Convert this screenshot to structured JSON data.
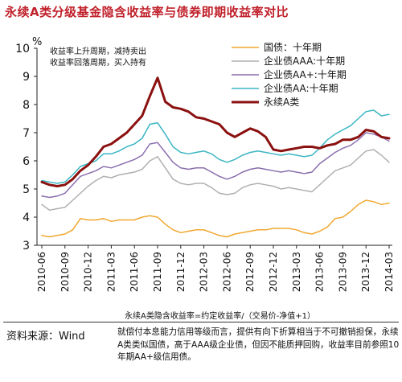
{
  "figure": {
    "title": "永续A类分级基金隐含收益率与债券即期收益率对比",
    "y_unit": "%",
    "annotation": [
      "收益率上升周期，减持卖出",
      "收益率回落周期，买入持有"
    ],
    "formula": "永续A类隐含收益率=约定收益率/（交易价-净值+1）",
    "source": "资料来源：Wind",
    "note": "就偿付本息能力信用等级而言，提供有向下折算相当于不可撤销担保，永续A类类似国债，高于AAA级企业债，但因不能质押回购，收益率目前参照10年期AA+级信用债。"
  },
  "chart_data": {
    "type": "line",
    "title": "永续A类分级基金隐含收益率与债券即期收益率对比",
    "ylabel": "%",
    "xlabel": "",
    "ylim": [
      3,
      10
    ],
    "yticks": [
      3,
      4,
      5,
      6,
      7,
      8,
      9,
      10
    ],
    "x_range": [
      "2010-06",
      "2014-03"
    ],
    "x_ticks": [
      "2010-06",
      "2010-09",
      "2010-12",
      "2011-03",
      "2011-06",
      "2011-09",
      "2011-12",
      "2012-03",
      "2012-06",
      "2012-09",
      "2012-12",
      "2013-03",
      "2013-06",
      "2013-09",
      "2013-12",
      "2014-03"
    ],
    "legend_position": "top-right",
    "grid": false,
    "series": [
      {
        "name": "国债：十年期",
        "color": "#f0a830",
        "width": 1.5,
        "points": [
          [
            "2010-06",
            3.35
          ],
          [
            "2010-07",
            3.3
          ],
          [
            "2010-08",
            3.35
          ],
          [
            "2010-09",
            3.4
          ],
          [
            "2010-10",
            3.55
          ],
          [
            "2010-11",
            3.95
          ],
          [
            "2010-12",
            3.9
          ],
          [
            "2011-01",
            3.9
          ],
          [
            "2011-02",
            3.95
          ],
          [
            "2011-03",
            3.85
          ],
          [
            "2011-04",
            3.9
          ],
          [
            "2011-05",
            3.9
          ],
          [
            "2011-06",
            3.9
          ],
          [
            "2011-07",
            4.0
          ],
          [
            "2011-08",
            4.05
          ],
          [
            "2011-09",
            4.0
          ],
          [
            "2011-10",
            3.75
          ],
          [
            "2011-11",
            3.55
          ],
          [
            "2011-12",
            3.45
          ],
          [
            "2012-01",
            3.5
          ],
          [
            "2012-02",
            3.55
          ],
          [
            "2012-03",
            3.55
          ],
          [
            "2012-04",
            3.45
          ],
          [
            "2012-05",
            3.35
          ],
          [
            "2012-06",
            3.3
          ],
          [
            "2012-07",
            3.4
          ],
          [
            "2012-08",
            3.45
          ],
          [
            "2012-09",
            3.5
          ],
          [
            "2012-10",
            3.55
          ],
          [
            "2012-11",
            3.55
          ],
          [
            "2012-12",
            3.6
          ],
          [
            "2013-01",
            3.6
          ],
          [
            "2013-02",
            3.6
          ],
          [
            "2013-03",
            3.55
          ],
          [
            "2013-04",
            3.45
          ],
          [
            "2013-05",
            3.4
          ],
          [
            "2013-06",
            3.5
          ],
          [
            "2013-07",
            3.65
          ],
          [
            "2013-08",
            3.95
          ],
          [
            "2013-09",
            4.0
          ],
          [
            "2013-10",
            4.2
          ],
          [
            "2013-11",
            4.45
          ],
          [
            "2013-12",
            4.6
          ],
          [
            "2014-01",
            4.55
          ],
          [
            "2014-02",
            4.45
          ],
          [
            "2014-03",
            4.5
          ]
        ]
      },
      {
        "name": "企业债AAA:十年期",
        "color": "#b0b0b0",
        "width": 1.5,
        "points": [
          [
            "2010-06",
            4.45
          ],
          [
            "2010-07",
            4.25
          ],
          [
            "2010-08",
            4.3
          ],
          [
            "2010-09",
            4.35
          ],
          [
            "2010-10",
            4.6
          ],
          [
            "2010-11",
            4.85
          ],
          [
            "2010-12",
            5.1
          ],
          [
            "2011-01",
            5.3
          ],
          [
            "2011-02",
            5.45
          ],
          [
            "2011-03",
            5.4
          ],
          [
            "2011-04",
            5.5
          ],
          [
            "2011-05",
            5.55
          ],
          [
            "2011-06",
            5.6
          ],
          [
            "2011-07",
            5.7
          ],
          [
            "2011-08",
            6.0
          ],
          [
            "2011-09",
            6.15
          ],
          [
            "2011-10",
            5.75
          ],
          [
            "2011-11",
            5.35
          ],
          [
            "2011-12",
            5.2
          ],
          [
            "2012-01",
            5.15
          ],
          [
            "2012-02",
            5.2
          ],
          [
            "2012-03",
            5.2
          ],
          [
            "2012-04",
            5.05
          ],
          [
            "2012-05",
            4.85
          ],
          [
            "2012-06",
            4.8
          ],
          [
            "2012-07",
            4.85
          ],
          [
            "2012-08",
            5.05
          ],
          [
            "2012-09",
            5.15
          ],
          [
            "2012-10",
            5.2
          ],
          [
            "2012-11",
            5.15
          ],
          [
            "2012-12",
            5.1
          ],
          [
            "2013-01",
            5.0
          ],
          [
            "2013-02",
            5.05
          ],
          [
            "2013-03",
            5.0
          ],
          [
            "2013-04",
            4.95
          ],
          [
            "2013-05",
            4.9
          ],
          [
            "2013-06",
            5.15
          ],
          [
            "2013-07",
            5.4
          ],
          [
            "2013-08",
            5.65
          ],
          [
            "2013-09",
            5.75
          ],
          [
            "2013-10",
            5.85
          ],
          [
            "2013-11",
            6.1
          ],
          [
            "2013-12",
            6.35
          ],
          [
            "2014-01",
            6.4
          ],
          [
            "2014-02",
            6.2
          ],
          [
            "2014-03",
            5.95
          ]
        ]
      },
      {
        "name": "企业债AA+:十年期",
        "color": "#8a6fae",
        "width": 1.5,
        "points": [
          [
            "2010-06",
            4.75
          ],
          [
            "2010-07",
            4.7
          ],
          [
            "2010-08",
            4.75
          ],
          [
            "2010-09",
            4.85
          ],
          [
            "2010-10",
            5.15
          ],
          [
            "2010-11",
            5.45
          ],
          [
            "2010-12",
            5.55
          ],
          [
            "2011-01",
            5.65
          ],
          [
            "2011-02",
            5.8
          ],
          [
            "2011-03",
            5.75
          ],
          [
            "2011-04",
            5.85
          ],
          [
            "2011-05",
            5.95
          ],
          [
            "2011-06",
            6.05
          ],
          [
            "2011-07",
            6.2
          ],
          [
            "2011-08",
            6.6
          ],
          [
            "2011-09",
            6.65
          ],
          [
            "2011-10",
            6.3
          ],
          [
            "2011-11",
            5.95
          ],
          [
            "2011-12",
            5.75
          ],
          [
            "2012-01",
            5.7
          ],
          [
            "2012-02",
            5.75
          ],
          [
            "2012-03",
            5.75
          ],
          [
            "2012-04",
            5.6
          ],
          [
            "2012-05",
            5.45
          ],
          [
            "2012-06",
            5.35
          ],
          [
            "2012-07",
            5.45
          ],
          [
            "2012-08",
            5.6
          ],
          [
            "2012-09",
            5.7
          ],
          [
            "2012-10",
            5.75
          ],
          [
            "2012-11",
            5.7
          ],
          [
            "2012-12",
            5.65
          ],
          [
            "2013-01",
            5.6
          ],
          [
            "2013-02",
            5.65
          ],
          [
            "2013-03",
            5.6
          ],
          [
            "2013-04",
            5.55
          ],
          [
            "2013-05",
            5.6
          ],
          [
            "2013-06",
            5.9
          ],
          [
            "2013-07",
            6.1
          ],
          [
            "2013-08",
            6.3
          ],
          [
            "2013-09",
            6.45
          ],
          [
            "2013-10",
            6.55
          ],
          [
            "2013-11",
            6.75
          ],
          [
            "2013-12",
            7.0
          ],
          [
            "2014-01",
            6.95
          ],
          [
            "2014-02",
            6.85
          ],
          [
            "2014-03",
            6.7
          ]
        ]
      },
      {
        "name": "企业债AA:十年期",
        "color": "#3bb6c4",
        "width": 1.5,
        "points": [
          [
            "2010-06",
            5.3
          ],
          [
            "2010-07",
            5.25
          ],
          [
            "2010-08",
            5.2
          ],
          [
            "2010-09",
            5.25
          ],
          [
            "2010-10",
            5.5
          ],
          [
            "2010-11",
            5.8
          ],
          [
            "2010-12",
            5.9
          ],
          [
            "2011-01",
            6.0
          ],
          [
            "2011-02",
            6.25
          ],
          [
            "2011-03",
            6.25
          ],
          [
            "2011-04",
            6.35
          ],
          [
            "2011-05",
            6.5
          ],
          [
            "2011-06",
            6.6
          ],
          [
            "2011-07",
            6.8
          ],
          [
            "2011-08",
            7.3
          ],
          [
            "2011-09",
            7.35
          ],
          [
            "2011-10",
            6.95
          ],
          [
            "2011-11",
            6.5
          ],
          [
            "2011-12",
            6.3
          ],
          [
            "2012-01",
            6.25
          ],
          [
            "2012-02",
            6.3
          ],
          [
            "2012-03",
            6.35
          ],
          [
            "2012-04",
            6.25
          ],
          [
            "2012-05",
            6.05
          ],
          [
            "2012-06",
            5.95
          ],
          [
            "2012-07",
            6.05
          ],
          [
            "2012-08",
            6.2
          ],
          [
            "2012-09",
            6.3
          ],
          [
            "2012-10",
            6.35
          ],
          [
            "2012-11",
            6.3
          ],
          [
            "2012-12",
            6.25
          ],
          [
            "2013-01",
            6.2
          ],
          [
            "2013-02",
            6.25
          ],
          [
            "2013-03",
            6.2
          ],
          [
            "2013-04",
            6.15
          ],
          [
            "2013-05",
            6.2
          ],
          [
            "2013-06",
            6.45
          ],
          [
            "2013-07",
            6.75
          ],
          [
            "2013-08",
            6.95
          ],
          [
            "2013-09",
            7.1
          ],
          [
            "2013-10",
            7.25
          ],
          [
            "2013-11",
            7.5
          ],
          [
            "2013-12",
            7.75
          ],
          [
            "2014-01",
            7.8
          ],
          [
            "2014-02",
            7.6
          ],
          [
            "2014-03",
            7.65
          ]
        ]
      },
      {
        "name": "永续A类",
        "color": "#8b1010",
        "width": 3,
        "points": [
          [
            "2010-06",
            5.25
          ],
          [
            "2010-07",
            5.15
          ],
          [
            "2010-08",
            5.1
          ],
          [
            "2010-09",
            5.15
          ],
          [
            "2010-10",
            5.35
          ],
          [
            "2010-11",
            5.65
          ],
          [
            "2010-12",
            5.85
          ],
          [
            "2011-01",
            6.15
          ],
          [
            "2011-02",
            6.5
          ],
          [
            "2011-03",
            6.6
          ],
          [
            "2011-04",
            6.8
          ],
          [
            "2011-05",
            7.0
          ],
          [
            "2011-06",
            7.3
          ],
          [
            "2011-07",
            7.6
          ],
          [
            "2011-08",
            8.3
          ],
          [
            "2011-09",
            8.95
          ],
          [
            "2011-10",
            8.1
          ],
          [
            "2011-11",
            7.9
          ],
          [
            "2011-12",
            7.85
          ],
          [
            "2012-01",
            7.75
          ],
          [
            "2012-02",
            7.55
          ],
          [
            "2012-03",
            7.5
          ],
          [
            "2012-04",
            7.4
          ],
          [
            "2012-05",
            7.3
          ],
          [
            "2012-06",
            7.0
          ],
          [
            "2012-07",
            6.85
          ],
          [
            "2012-08",
            7.0
          ],
          [
            "2012-09",
            7.15
          ],
          [
            "2012-10",
            7.05
          ],
          [
            "2012-11",
            6.85
          ],
          [
            "2012-12",
            6.4
          ],
          [
            "2013-01",
            6.35
          ],
          [
            "2013-02",
            6.4
          ],
          [
            "2013-03",
            6.45
          ],
          [
            "2013-04",
            6.5
          ],
          [
            "2013-05",
            6.5
          ],
          [
            "2013-06",
            6.45
          ],
          [
            "2013-07",
            6.55
          ],
          [
            "2013-08",
            6.6
          ],
          [
            "2013-09",
            6.75
          ],
          [
            "2013-10",
            6.75
          ],
          [
            "2013-11",
            6.85
          ],
          [
            "2013-12",
            7.1
          ],
          [
            "2014-01",
            7.05
          ],
          [
            "2014-02",
            6.85
          ],
          [
            "2014-03",
            6.8
          ]
        ]
      }
    ]
  }
}
